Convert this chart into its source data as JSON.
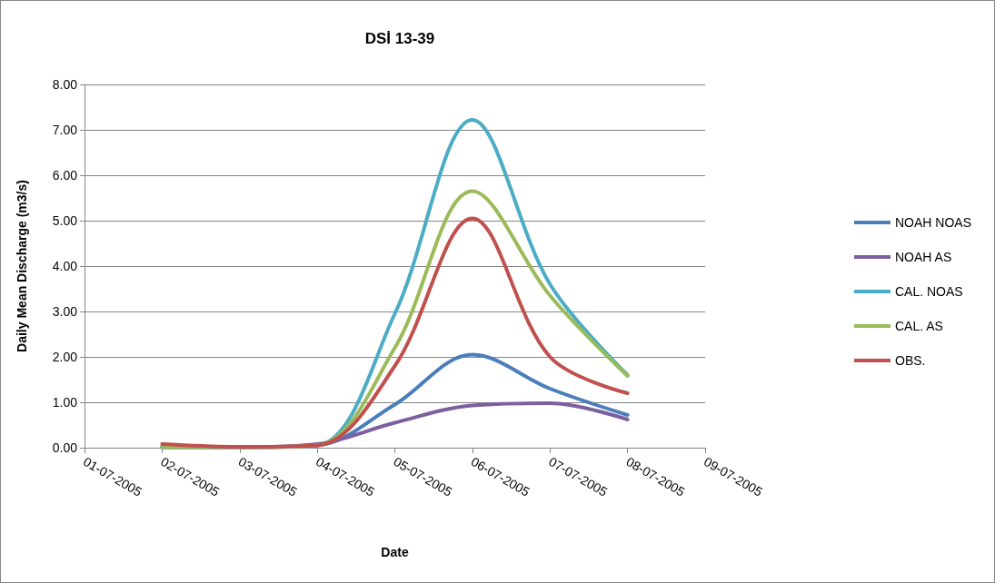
{
  "chart_data": {
    "type": "line",
    "title": "DSİ 13-39",
    "xlabel": "Date",
    "ylabel": "Daily Mean Discharge (m3/s)",
    "x": [
      "2005-07-02",
      "2005-07-03",
      "2005-07-04",
      "2005-07-05",
      "2005-07-06",
      "2005-07-07",
      "2005-07-08"
    ],
    "series": [
      {
        "name": "NOAH NOAS",
        "color": "#4a7ebb",
        "values": [
          0.02,
          0.01,
          0.05,
          0.95,
          2.05,
          1.3,
          0.72
        ]
      },
      {
        "name": "NOAH AS",
        "color": "#7d5fa0",
        "values": [
          0.01,
          0.01,
          0.08,
          0.55,
          0.93,
          0.98,
          0.62
        ]
      },
      {
        "name": "CAL. NOAS",
        "color": "#4bacc6",
        "values": [
          0.01,
          0.01,
          0.05,
          2.95,
          7.22,
          3.6,
          1.6
        ]
      },
      {
        "name": "CAL. AS",
        "color": "#9bbb59",
        "values": [
          0.01,
          0.01,
          0.05,
          2.2,
          5.65,
          3.35,
          1.58
        ]
      },
      {
        "name": "OBS.",
        "color": "#c0504d",
        "values": [
          0.08,
          0.02,
          0.05,
          1.8,
          5.05,
          2.0,
          1.2
        ]
      }
    ],
    "xlim": [
      "2005-07-01",
      "2005-07-09"
    ],
    "xticks": [
      {
        "value": "2005-07-01",
        "label": "01-07-2005"
      },
      {
        "value": "2005-07-02",
        "label": "02-07-2005"
      },
      {
        "value": "2005-07-03",
        "label": "03-07-2005"
      },
      {
        "value": "2005-07-04",
        "label": "04-07-2005"
      },
      {
        "value": "2005-07-05",
        "label": "05-07-2005"
      },
      {
        "value": "2005-07-06",
        "label": "06-07-2005"
      },
      {
        "value": "2005-07-07",
        "label": "07-07-2005"
      },
      {
        "value": "2005-07-08",
        "label": "08-07-2005"
      },
      {
        "value": "2005-07-09",
        "label": "09-07-2005"
      }
    ],
    "ylim": [
      0,
      8
    ],
    "yticks": [
      {
        "value": 0,
        "label": "0.00"
      },
      {
        "value": 1,
        "label": "1.00"
      },
      {
        "value": 2,
        "label": "2.00"
      },
      {
        "value": 3,
        "label": "3.00"
      },
      {
        "value": 4,
        "label": "4.00"
      },
      {
        "value": 5,
        "label": "5.00"
      },
      {
        "value": 6,
        "label": "6.00"
      },
      {
        "value": 7,
        "label": "7.00"
      },
      {
        "value": 8,
        "label": "8.00"
      }
    ],
    "grid": "y",
    "legend": "right",
    "marker": "none",
    "line_style": "solid"
  }
}
